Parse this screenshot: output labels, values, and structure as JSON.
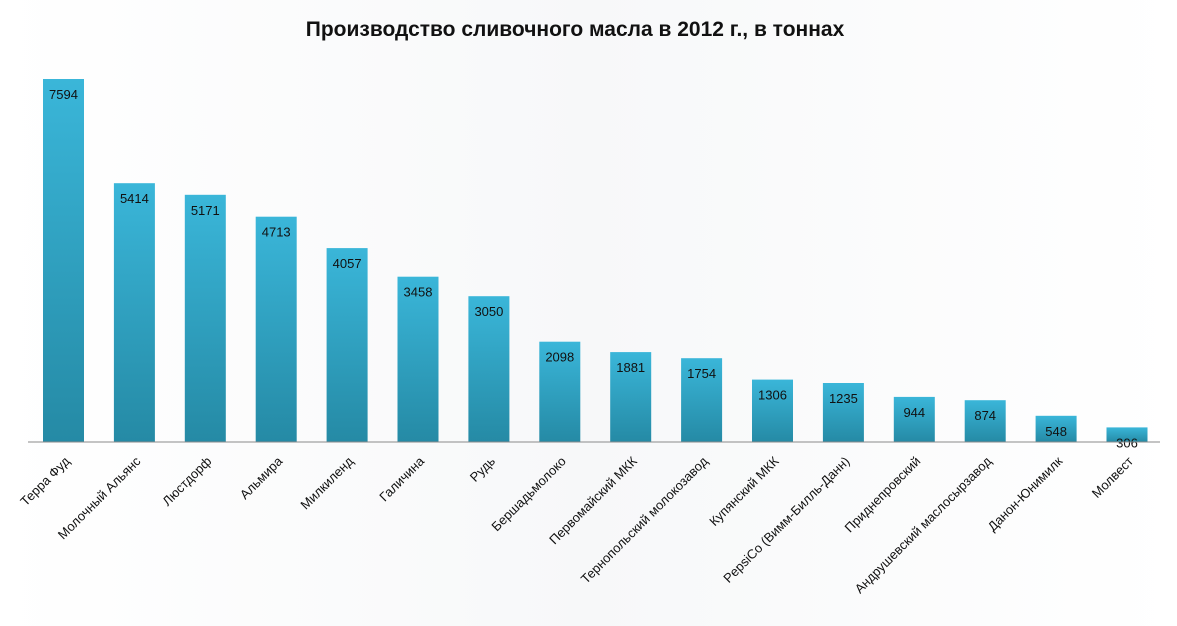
{
  "chart_data": {
    "type": "bar",
    "title": "Производство сливочного масла в 2012 г., в тоннах",
    "xlabel": "",
    "ylabel": "",
    "categories": [
      "Терра Фуд",
      "Молочный Альянс",
      "Люстдорф",
      "Альмира",
      "Милкиленд",
      "Галичина",
      "Рудь",
      "Бершадьмолоко",
      "Первомайский МКК",
      "Тернопольский молокозавод",
      "Купянский МКК",
      "PepsiCo (Вимм-Билль-Данн)",
      "Приднепровский",
      "Андрушевский маслосырзавод",
      "Данон-Юнимилк",
      "Молвест"
    ],
    "values": [
      7594,
      5414,
      5171,
      4713,
      4057,
      3458,
      3050,
      2098,
      1881,
      1754,
      1306,
      1235,
      944,
      874,
      548,
      306
    ],
    "ylim": [
      0,
      7594
    ],
    "grid": false,
    "legend": "none",
    "data_labels": "inside-end",
    "colors": {
      "bar_top": "#3ab6d9",
      "bar_bottom": "#258aa5",
      "axis": "#8a8a8a",
      "text": "#111111"
    }
  }
}
